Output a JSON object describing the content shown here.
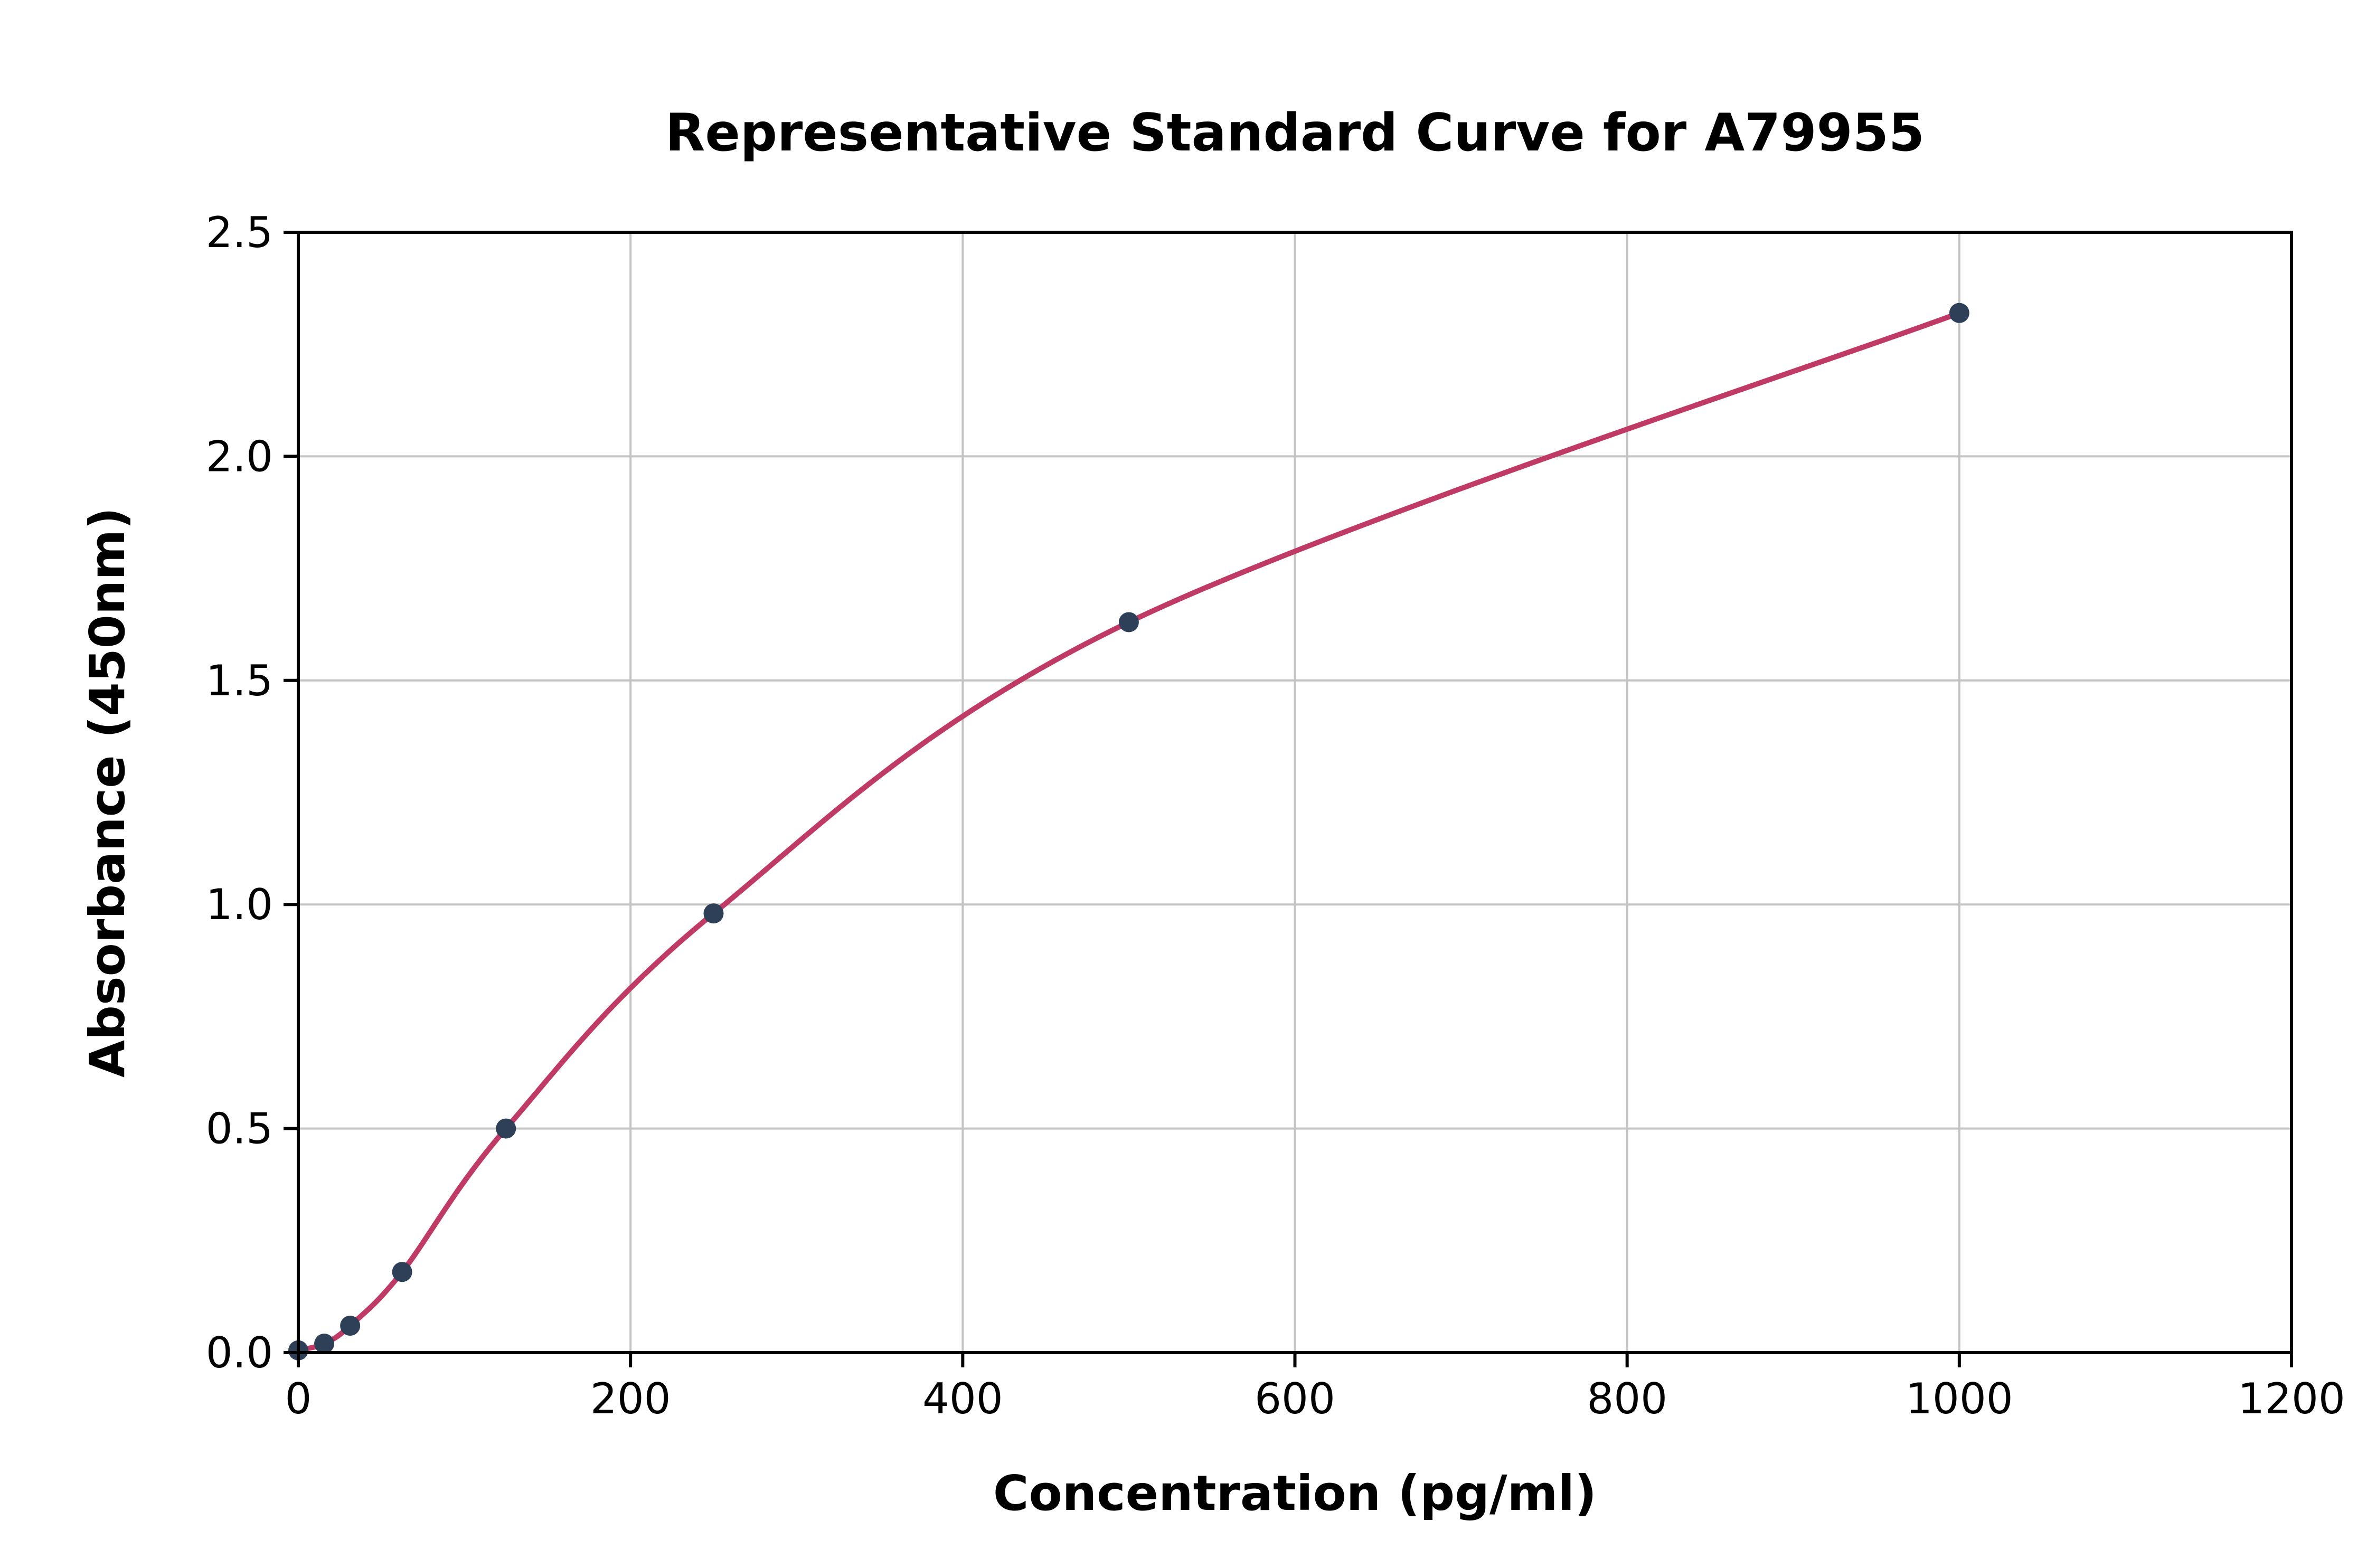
{
  "figure": {
    "title": "Representative Standard Curve for A79955"
  },
  "chart_data": {
    "type": "scatter",
    "title": "Representative Standard Curve for A79955",
    "xlabel": "Concentration (pg/ml)",
    "ylabel": "Absorbance (450nm)",
    "xlim": [
      0,
      1200
    ],
    "ylim": [
      0,
      2.5
    ],
    "x_ticks": [
      0,
      200,
      400,
      600,
      800,
      1000,
      1200
    ],
    "x_tick_labels": [
      "0",
      "200",
      "400",
      "600",
      "800",
      "1000",
      "1200"
    ],
    "y_ticks": [
      0,
      0.5,
      1.0,
      1.5,
      2.0,
      2.5
    ],
    "y_tick_labels": [
      "0.0",
      "0.5",
      "1.0",
      "1.5",
      "2.0",
      "2.5"
    ],
    "grid": true,
    "legend_position": "none",
    "series": [
      {
        "name": "standard-points",
        "type": "scatter",
        "color": "#2e4057",
        "points": [
          {
            "x": 0,
            "y": 0.005
          },
          {
            "x": 15.6,
            "y": 0.02
          },
          {
            "x": 31.2,
            "y": 0.06
          },
          {
            "x": 62.5,
            "y": 0.18
          },
          {
            "x": 125,
            "y": 0.5
          },
          {
            "x": 250,
            "y": 0.98
          },
          {
            "x": 500,
            "y": 1.63
          },
          {
            "x": 1000,
            "y": 2.32
          }
        ]
      },
      {
        "name": "fitted-curve",
        "type": "line",
        "color": "#c03a66",
        "source": "standard-points"
      }
    ],
    "colors": {
      "curve": "#c03a66",
      "points": "#2e4057",
      "grid": "#c3c3c3",
      "axis": "#000000",
      "background": "#ffffff"
    }
  }
}
